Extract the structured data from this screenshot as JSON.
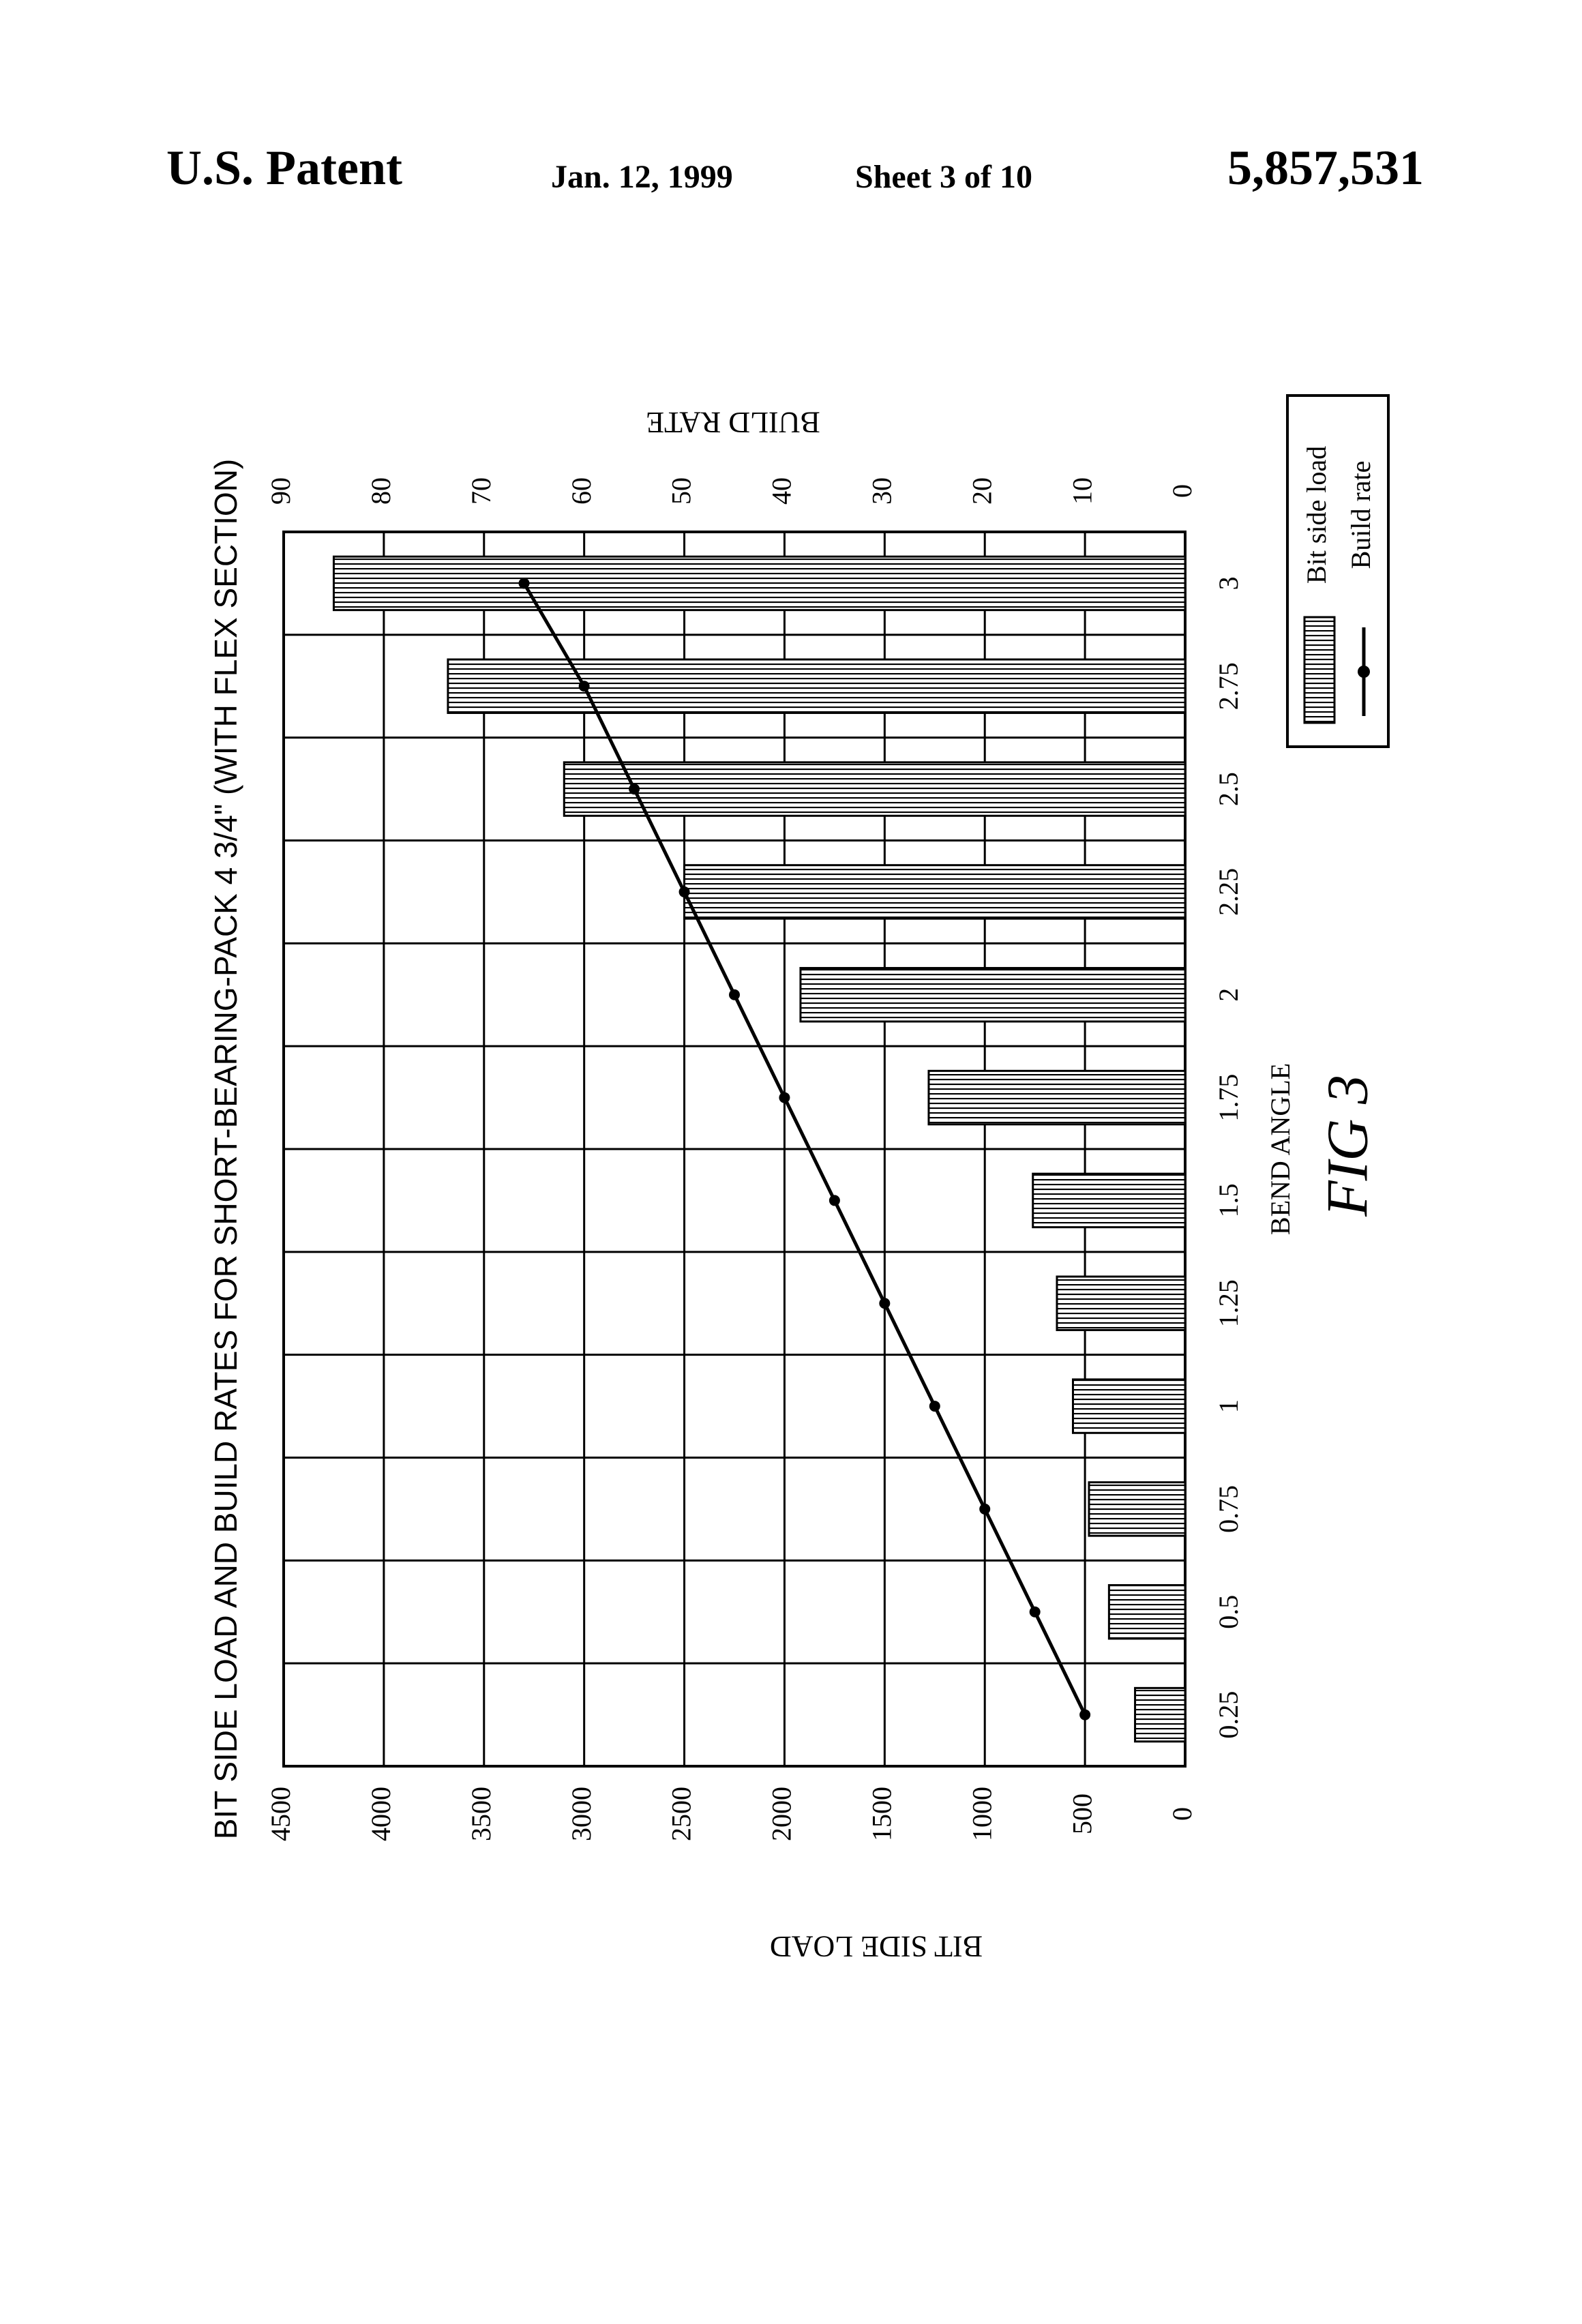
{
  "header": {
    "left": "U.S. Patent",
    "date": "Jan. 12, 1999",
    "sheet": "Sheet 3 of 10",
    "patent_number": "5,857,531"
  },
  "figure_label": "FIG 3",
  "chart_data": {
    "type": "bar",
    "title": "BIT SIDE LOAD AND BUILD RATES FOR SHORT-BEARING-PACK 4 3/4\" (WITH  FLEX SECTION)",
    "xlabel": "BEND ANGLE",
    "ylabel": "BIT SIDE LOAD",
    "y2label": "BUILD RATE",
    "categories": [
      "0.25",
      "0.5",
      "0.75",
      "1",
      "1.25",
      "1.5",
      "1.75",
      "2",
      "2.25",
      "2.5",
      "2.75",
      "3"
    ],
    "y_ticks": [
      "0",
      "500",
      "1000",
      "1500",
      "2000",
      "2500",
      "3000",
      "3500",
      "4000",
      "4500"
    ],
    "y2_ticks": [
      "0",
      "10",
      "20",
      "30",
      "40",
      "50",
      "60",
      "70",
      "80",
      "90"
    ],
    "ylim": [
      0,
      4500
    ],
    "y2lim": [
      0,
      90
    ],
    "grid": true,
    "legend_position": "right",
    "orientation": "rotated-90-counterclockwise",
    "series": [
      {
        "name": "Bit side load",
        "type": "bar",
        "axis": "left",
        "values": [
          250,
          380,
          480,
          560,
          640,
          760,
          1280,
          1920,
          2500,
          3100,
          3680,
          4250
        ]
      },
      {
        "name": "Build rate",
        "type": "line",
        "axis": "right",
        "values": [
          10,
          15,
          20,
          25,
          30,
          35,
          40,
          45,
          50,
          55,
          60,
          66
        ]
      }
    ]
  }
}
